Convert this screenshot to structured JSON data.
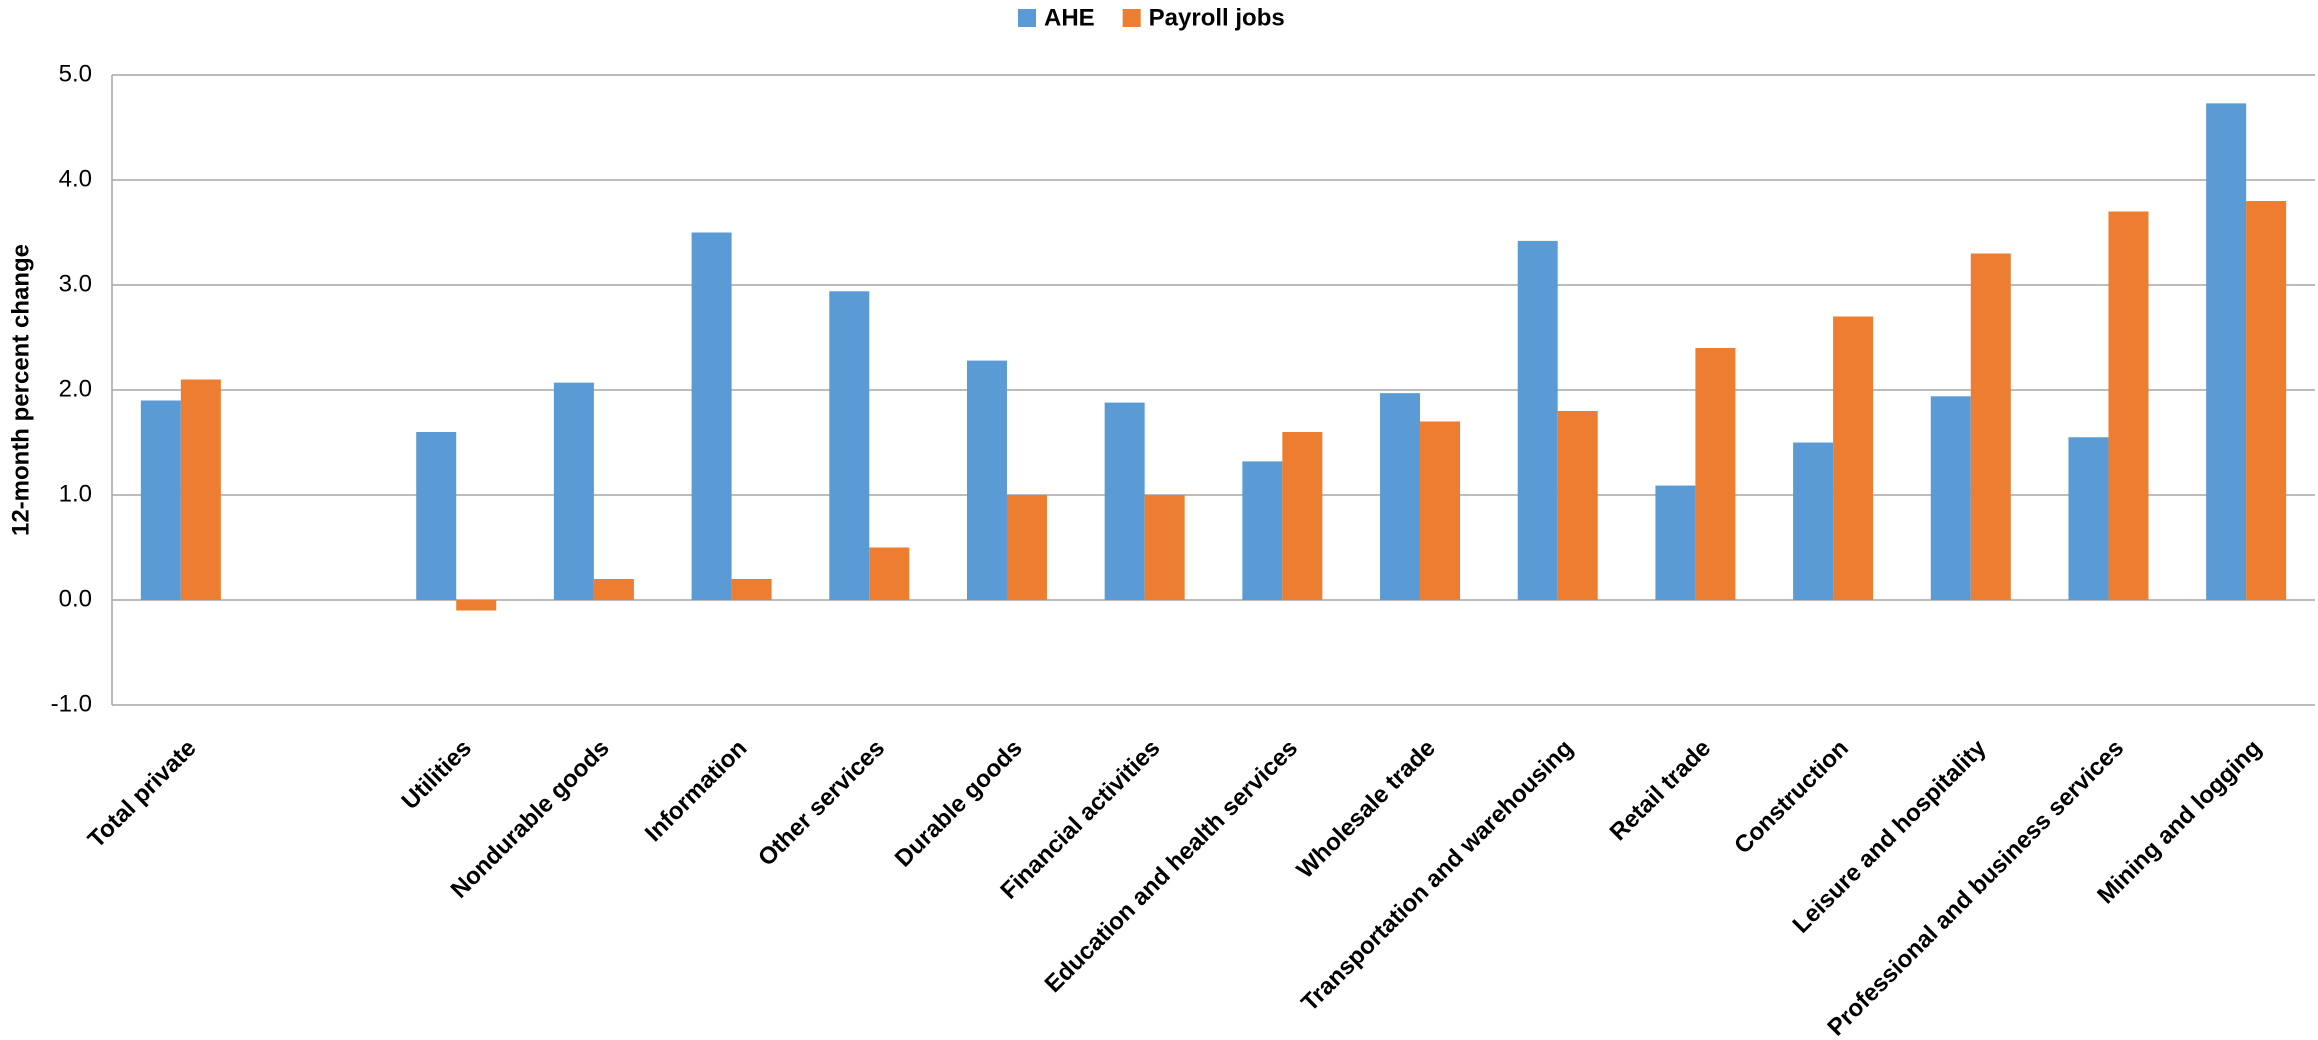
{
  "chart_data": {
    "type": "bar",
    "y_label": "12-month percent change",
    "categories": [
      "Total private",
      null,
      "Utilities",
      "Nondurable goods",
      "Information",
      "Other services",
      "Durable goods",
      "Financial activities",
      "Education and health services",
      "Wholesale trade",
      "Transportation and warehousing",
      "Retail trade",
      "Construction",
      "Leisure and hospitality",
      "Professional and business services",
      "Mining and logging"
    ],
    "series": [
      {
        "name": "AHE",
        "color": "#5b9bd5",
        "values": [
          1.9,
          null,
          1.6,
          2.07,
          3.5,
          2.94,
          2.28,
          1.88,
          1.32,
          1.97,
          3.42,
          1.09,
          1.5,
          1.94,
          1.55,
          4.73
        ]
      },
      {
        "name": "Payroll jobs",
        "color": "#ed7d31",
        "values": [
          2.1,
          null,
          -0.1,
          0.2,
          0.2,
          0.5,
          1.0,
          1.0,
          1.6,
          1.7,
          1.8,
          2.4,
          2.7,
          3.3,
          3.7,
          3.8
        ]
      }
    ],
    "ylim": [
      -1,
      5
    ],
    "yticks": [
      {
        "value": -1,
        "label": "-1.0"
      },
      {
        "value": 0,
        "label": "0.0"
      },
      {
        "value": 1,
        "label": "1.0"
      },
      {
        "value": 2,
        "label": "2.0"
      },
      {
        "value": 3,
        "label": "3.0"
      },
      {
        "value": 4,
        "label": "4.0"
      },
      {
        "value": 5,
        "label": "5.0"
      }
    ],
    "grid": true,
    "legend": "top"
  }
}
